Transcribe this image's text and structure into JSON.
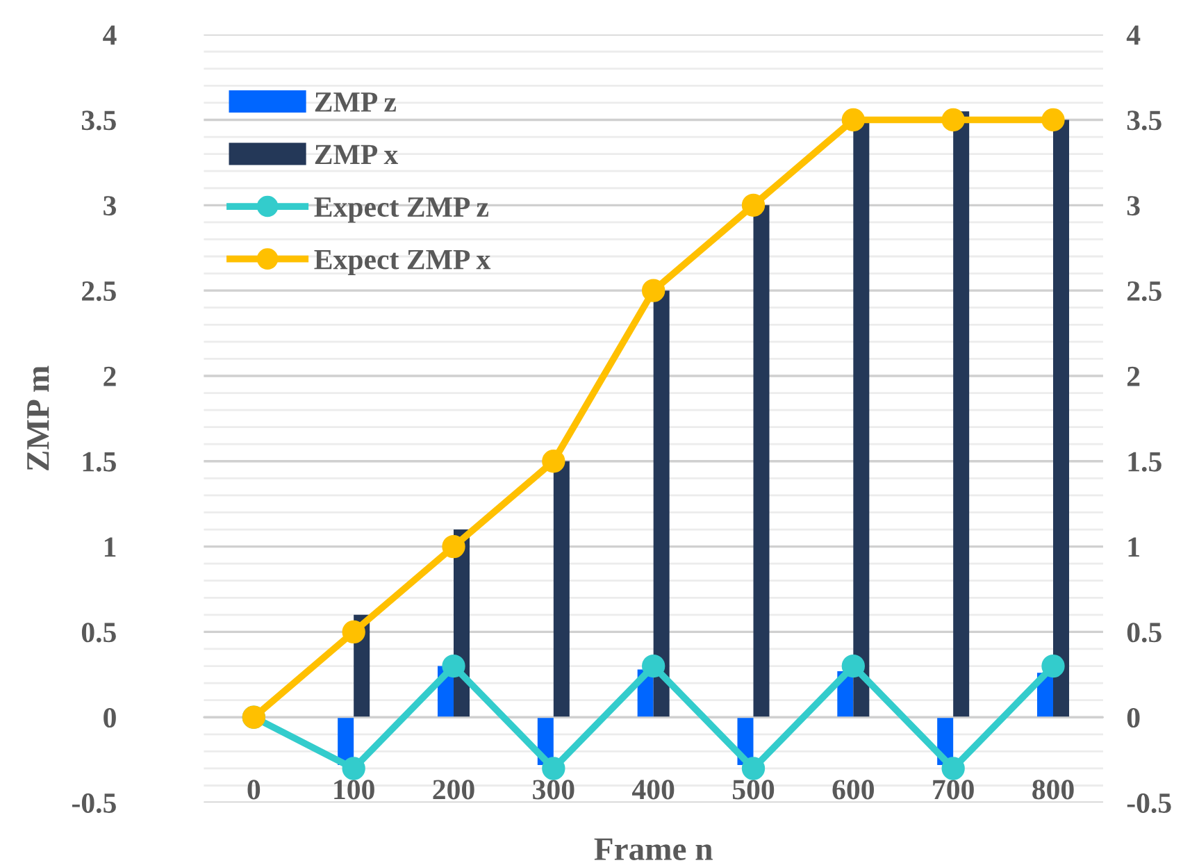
{
  "chart_data": {
    "type": "bar",
    "xlabel": "Frame n",
    "ylabel": "ZMP m",
    "categories": [
      "0",
      "100",
      "200",
      "300",
      "400",
      "500",
      "600",
      "700",
      "800"
    ],
    "series": [
      {
        "name": "ZMP z",
        "color": "#0066ff",
        "values": [
          0,
          -0.28,
          0.3,
          -0.28,
          0.28,
          -0.28,
          0.27,
          -0.28,
          0.26
        ]
      },
      {
        "name": "ZMP x",
        "color": "#243858",
        "values": [
          0,
          0.6,
          1.1,
          1.5,
          2.5,
          3.0,
          3.5,
          3.55,
          3.5
        ]
      },
      {
        "name": "Expect ZMP z",
        "type": "line",
        "color": "#33cccc",
        "marker": "circle",
        "values": [
          0,
          -0.3,
          0.3,
          -0.3,
          0.3,
          -0.3,
          0.3,
          -0.3,
          0.3
        ]
      },
      {
        "name": "Expect ZMP x",
        "type": "line",
        "color": "#ffc000",
        "marker": "circle",
        "values": [
          0,
          0.5,
          1,
          1.5,
          2.5,
          3,
          3.5,
          3.5,
          3.5
        ]
      }
    ],
    "ylim": [
      -0.5,
      4
    ],
    "yticks": [
      -0.5,
      0,
      0.5,
      1,
      1.5,
      2,
      2.5,
      3,
      3.5,
      4
    ],
    "y2lim": [
      -0.5,
      4
    ],
    "y2ticks": [
      -0.5,
      0,
      0.5,
      1,
      1.5,
      2,
      2.5,
      3,
      3.5,
      4
    ],
    "grid": "y",
    "legend": "top left"
  }
}
